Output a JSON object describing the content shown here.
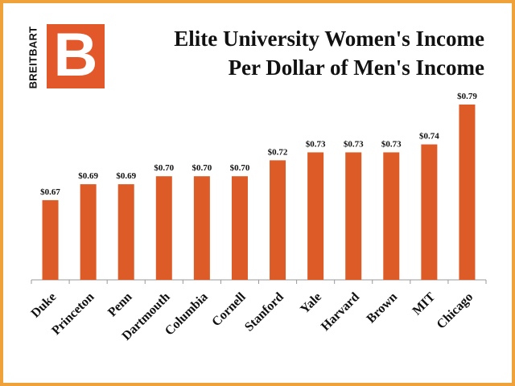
{
  "logo": {
    "side_text": "BREITBART",
    "letter": "B",
    "color": "#e2582a"
  },
  "title_line1": "Elite University Women's Income",
  "title_line2": "Per Dollar of Men's Income",
  "colors": {
    "bar": "#dd5b26",
    "frame": "#f0a23a",
    "axis": "#999999"
  },
  "chart_data": {
    "type": "bar",
    "title": "Elite University Women's Income Per Dollar of Men's Income",
    "xlabel": "",
    "ylabel": "",
    "categories": [
      "Duke",
      "Princeton",
      "Penn",
      "Dartmouth",
      "Columbia",
      "Cornell",
      "Stanford",
      "Yale",
      "Harvard",
      "Brown",
      "MIT",
      "Chicago"
    ],
    "values": [
      0.67,
      0.69,
      0.69,
      0.7,
      0.7,
      0.7,
      0.72,
      0.73,
      0.73,
      0.73,
      0.74,
      0.79
    ],
    "value_labels": [
      "$0.67",
      "$0.69",
      "$0.69",
      "$0.70",
      "$0.70",
      "$0.70",
      "$0.72",
      "$0.73",
      "$0.73",
      "$0.73",
      "$0.74",
      "$0.79"
    ],
    "ylim": [
      0.57,
      0.79
    ],
    "grid": false,
    "legend": "none"
  }
}
